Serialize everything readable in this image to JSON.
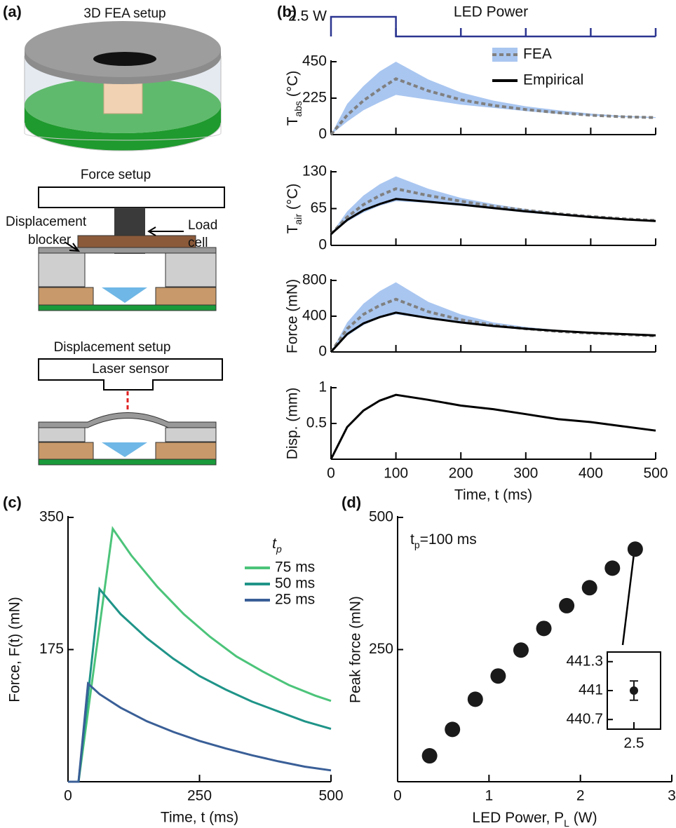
{
  "panel_labels": [
    "(a)",
    "(b)",
    "(c)",
    "(d)"
  ],
  "diagram": {
    "fea_title": "3D FEA setup",
    "force_title": "Force setup",
    "blocker": [
      "Displacement",
      "blocker"
    ],
    "load_cell": [
      "Load",
      "cell"
    ],
    "displacement_title": "Displacement setup",
    "laser": "Laser sensor"
  },
  "chart_data": [
    {
      "type": "step",
      "title": "LED Power",
      "color": "#2b3590",
      "x": [
        0,
        0,
        100,
        100,
        500
      ],
      "values": [
        0,
        2.5,
        2.5,
        0,
        0
      ],
      "xlim": [
        0,
        500
      ],
      "xticks": [
        100,
        200,
        300,
        400,
        500
      ],
      "ylim": [
        0,
        2.5
      ],
      "yticks": [
        {
          "value": 2.5,
          "label": "2.5 W"
        }
      ]
    },
    {
      "type": "line",
      "ylabel": {
        "main": "T",
        "sub": "abs",
        "rest": " (°C)"
      },
      "x": [
        0,
        25,
        50,
        75,
        100,
        150,
        200,
        250,
        300,
        350,
        400,
        450,
        500
      ],
      "series": [
        {
          "color": "#808080",
          "band_color": "#a9c6f0",
          "style": "dashed",
          "values": [
            0,
            120,
            210,
            280,
            345,
            270,
            215,
            180,
            155,
            135,
            120,
            110,
            105
          ],
          "lower": [
            0,
            80,
            150,
            200,
            245,
            215,
            185,
            165,
            145,
            128,
            117,
            108,
            103
          ],
          "upper": [
            0,
            190,
            300,
            390,
            450,
            340,
            260,
            210,
            175,
            150,
            130,
            115,
            108
          ]
        }
      ],
      "legend": [
        {
          "name": "FEA",
          "color": "#a9c6f0"
        },
        {
          "name": "Empirical",
          "color": "#000000"
        }
      ],
      "xlim": [
        0,
        500
      ],
      "ylim": [
        0,
        450
      ],
      "yticks": [
        0,
        225,
        450
      ]
    },
    {
      "type": "line",
      "ylabel": {
        "main": "T",
        "sub": "air",
        "rest": " (°C)"
      },
      "x": [
        0,
        25,
        50,
        75,
        100,
        150,
        200,
        250,
        300,
        350,
        400,
        450,
        500
      ],
      "series": [
        {
          "color": "#808080",
          "band_color": "#a9c6f0",
          "style": "dashed",
          "values": [
            20,
            50,
            72,
            88,
            100,
            88,
            78,
            69,
            62,
            56,
            51,
            47,
            44
          ],
          "lower": [
            20,
            42,
            58,
            70,
            78,
            75,
            70,
            64,
            58,
            53,
            49,
            45,
            43
          ],
          "upper": [
            20,
            60,
            88,
            108,
            122,
            100,
            84,
            73,
            64,
            57,
            52,
            47,
            44
          ]
        },
        {
          "color": "#000000",
          "style": "solid",
          "values": [
            20,
            45,
            62,
            73,
            82,
            77,
            72,
            66,
            60,
            55,
            50,
            46,
            43
          ]
        }
      ],
      "xlim": [
        0,
        500
      ],
      "ylim": [
        0,
        130
      ],
      "yticks": [
        0,
        65,
        130
      ]
    },
    {
      "type": "line",
      "ylabel": "Force (mN)",
      "x": [
        0,
        25,
        50,
        75,
        100,
        150,
        200,
        250,
        300,
        350,
        400,
        450,
        500
      ],
      "series": [
        {
          "color": "#808080",
          "band_color": "#a9c6f0",
          "style": "dashed",
          "values": [
            0,
            260,
            420,
            520,
            590,
            450,
            360,
            300,
            260,
            230,
            210,
            195,
            180
          ],
          "lower": [
            0,
            180,
            300,
            380,
            420,
            370,
            320,
            280,
            250,
            225,
            205,
            190,
            175
          ],
          "upper": [
            0,
            330,
            540,
            680,
            780,
            560,
            420,
            330,
            280,
            245,
            220,
            200,
            185
          ]
        },
        {
          "color": "#000000",
          "style": "solid",
          "values": [
            0,
            200,
            320,
            390,
            440,
            380,
            330,
            290,
            260,
            235,
            215,
            200,
            185
          ]
        }
      ],
      "xlim": [
        0,
        500
      ],
      "ylim": [
        0,
        800
      ],
      "yticks": [
        0,
        400,
        800
      ]
    },
    {
      "type": "line",
      "ylabel": "Disp. (mm)",
      "xlabel": "Time, t (ms)",
      "x": [
        0,
        25,
        50,
        75,
        100,
        150,
        200,
        250,
        300,
        350,
        400,
        450,
        500
      ],
      "series": [
        {
          "color": "#000000",
          "style": "solid",
          "values": [
            0,
            0.45,
            0.68,
            0.82,
            0.9,
            0.83,
            0.75,
            0.7,
            0.63,
            0.56,
            0.52,
            0.46,
            0.4
          ]
        }
      ],
      "xlim": [
        0,
        500
      ],
      "xticks": [
        0,
        100,
        200,
        300,
        400,
        500
      ],
      "ylim": [
        0,
        1
      ],
      "yticks": [
        0.5,
        1
      ]
    },
    {
      "type": "line",
      "ylabel": "Force, F(t) (mN)",
      "xlabel": "Time, t (ms)",
      "legend_title": {
        "main": "t",
        "sub": "p"
      },
      "series": [
        {
          "name": "75 ms",
          "color": "#4cc47a",
          "style": "solid",
          "x": [
            0,
            20,
            85,
            120,
            170,
            220,
            270,
            320,
            370,
            420,
            470,
            500
          ],
          "values": [
            0,
            0,
            335,
            300,
            258,
            222,
            192,
            166,
            146,
            128,
            114,
            107
          ]
        },
        {
          "name": "50 ms",
          "color": "#1f9488",
          "style": "solid",
          "x": [
            0,
            20,
            60,
            100,
            150,
            200,
            250,
            300,
            350,
            400,
            450,
            500
          ],
          "values": [
            0,
            0,
            255,
            222,
            190,
            163,
            140,
            122,
            106,
            93,
            80,
            70
          ]
        },
        {
          "name": "25 ms",
          "color": "#3a5f97",
          "style": "solid",
          "x": [
            0,
            20,
            38,
            60,
            100,
            150,
            200,
            250,
            300,
            350,
            400,
            450,
            500
          ],
          "values": [
            0,
            0,
            130,
            116,
            98,
            80,
            66,
            54,
            44,
            35,
            27,
            20,
            15
          ]
        }
      ],
      "xlim": [
        0,
        500
      ],
      "xticks": [
        0,
        250,
        500
      ],
      "ylim": [
        0,
        350
      ],
      "yticks": [
        175,
        350
      ]
    },
    {
      "type": "scatter",
      "ylabel": "Peak force (mN)",
      "xlabel": {
        "main": "LED Power, P",
        "sub": "L",
        "rest": " (W)"
      },
      "annotation": {
        "main": "t",
        "sub": "p",
        "rest": "=100 ms"
      },
      "x": [
        0.35,
        0.6,
        0.85,
        1.1,
        1.35,
        1.6,
        1.85,
        2.1,
        2.35,
        2.6
      ],
      "values": [
        49,
        99,
        156,
        200,
        249,
        290,
        333,
        367,
        404,
        440
      ],
      "color": "#1a1a1a",
      "xlim": [
        0,
        3
      ],
      "xticks": [
        0,
        1,
        2,
        3
      ],
      "ylim": [
        0,
        500
      ],
      "yticks": [
        250,
        500
      ]
    },
    {
      "type": "errorbar",
      "x": [
        2.5
      ],
      "values": [
        441
      ],
      "errors": [
        0.1
      ],
      "color": "#1a1a1a",
      "xlim": [
        2.3,
        2.7
      ],
      "xticks": [
        2.5
      ],
      "ylim": [
        440.6,
        441.4
      ],
      "yticks": [
        440.7,
        441,
        441.3
      ]
    }
  ]
}
